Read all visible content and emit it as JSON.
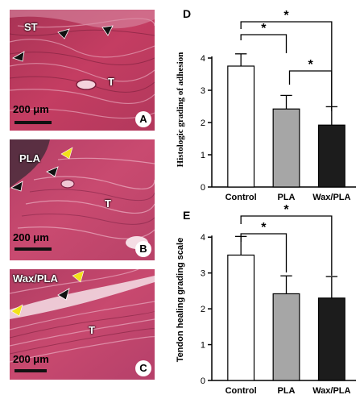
{
  "panels": [
    {
      "letter": "A",
      "scale": "200 μm",
      "labels": [
        {
          "text": "ST"
        },
        {
          "text": "T"
        }
      ]
    },
    {
      "letter": "B",
      "scale": "200 μm",
      "labels": [
        {
          "text": "PLA"
        },
        {
          "text": "T"
        }
      ]
    },
    {
      "letter": "C",
      "scale": "200 μm",
      "labels": [
        {
          "text": "Wax/PLA"
        },
        {
          "text": "T"
        }
      ]
    }
  ],
  "chart_data": [
    {
      "type": "bar",
      "panel_letter": "D",
      "categories": [
        "Control",
        "PLA",
        "Wax/PLA"
      ],
      "values": [
        3.75,
        2.42,
        1.92
      ],
      "errors": [
        0.38,
        0.42,
        0.57
      ],
      "bar_fills": [
        "#ffffff",
        "#a6a6a6",
        "#1c1c1c"
      ],
      "ylabel": "Histologic grading of adhesion",
      "ylim": [
        0,
        4.8
      ],
      "yticks": [
        "0",
        "1",
        "2",
        "3",
        "4"
      ],
      "significance": [
        {
          "from": 0,
          "to": 1,
          "label": "*"
        },
        {
          "from": 0,
          "to": 2,
          "label": "*"
        },
        {
          "from": 1,
          "to": 2,
          "label": "*"
        }
      ]
    },
    {
      "type": "bar",
      "panel_letter": "E",
      "categories": [
        "Control",
        "PLA",
        "Wax/PLA"
      ],
      "values": [
        3.5,
        2.42,
        2.3
      ],
      "errors": [
        0.52,
        0.5,
        0.6
      ],
      "bar_fills": [
        "#ffffff",
        "#a6a6a6",
        "#1c1c1c"
      ],
      "ylabel": "Tendon healing grading scale",
      "ylim": [
        0,
        4.5
      ],
      "yticks": [
        "0",
        "1",
        "2",
        "3",
        "4"
      ],
      "significance": [
        {
          "from": 0,
          "to": 1,
          "label": "*"
        },
        {
          "from": 0,
          "to": 2,
          "label": "*"
        }
      ]
    }
  ]
}
